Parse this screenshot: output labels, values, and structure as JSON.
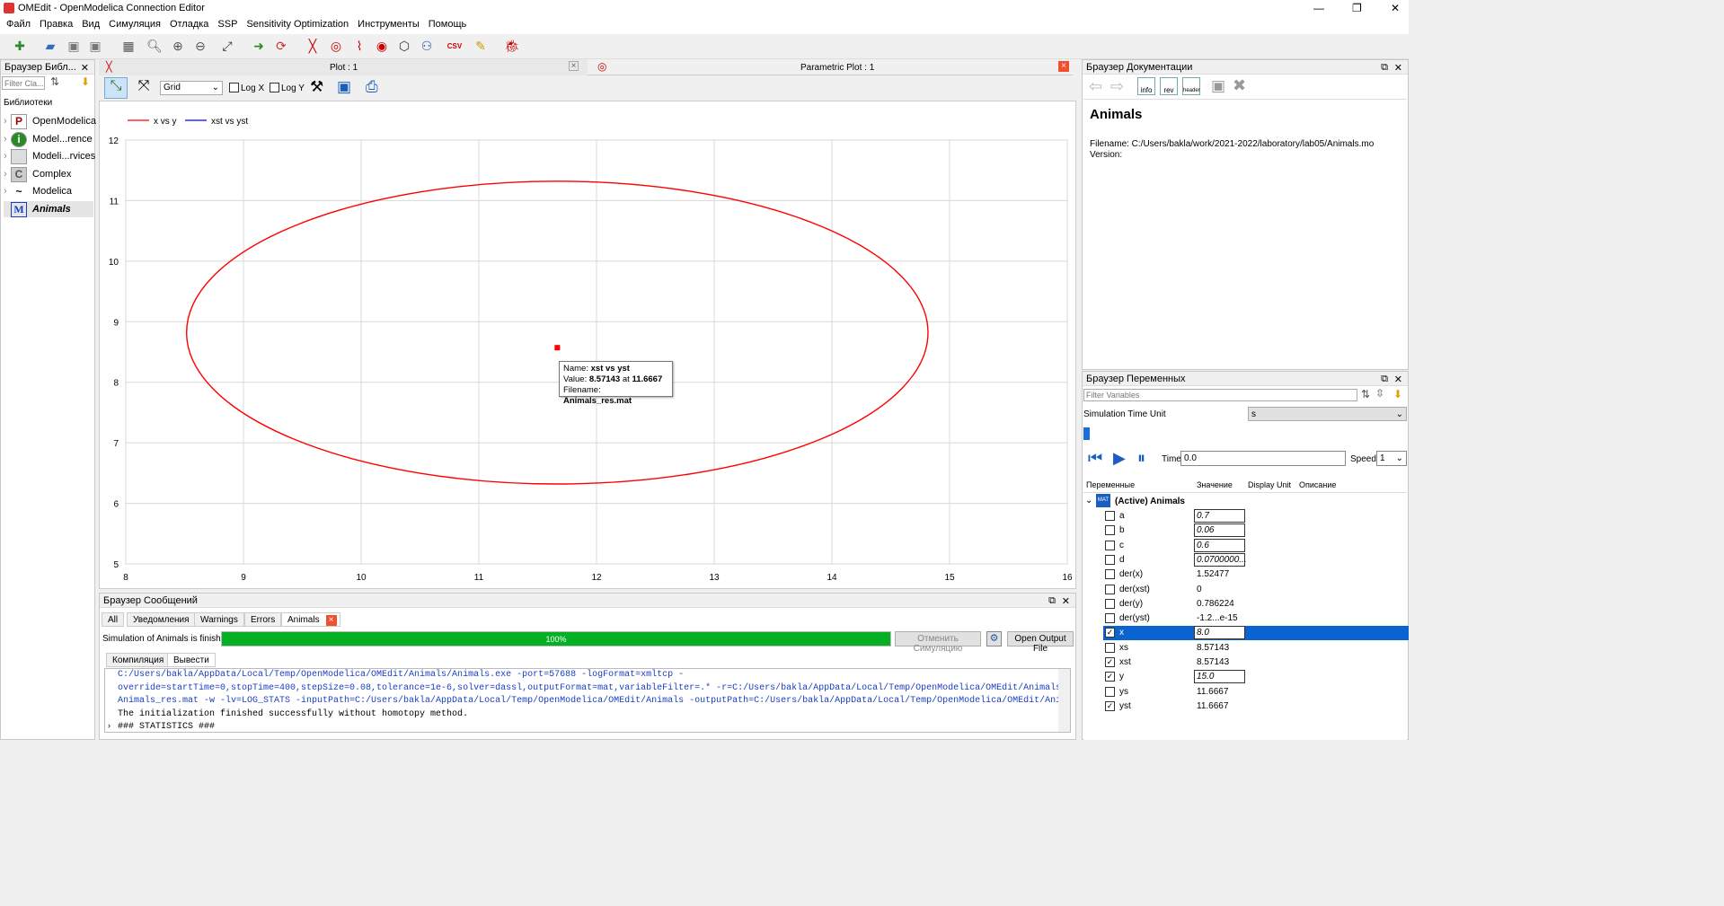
{
  "app": {
    "title": "OMEdit - OpenModelica Connection Editor"
  },
  "menu": [
    "Файл",
    "Правка",
    "Вид",
    "Симуляция",
    "Отладка",
    "SSP",
    "Sensitivity Optimization",
    "Инструменты",
    "Помощь"
  ],
  "library_browser": {
    "title": "Браузер Библ...",
    "filter_placeholder": "Filter Cla...",
    "header": "Библиотеки",
    "items": [
      {
        "label": "OpenModelica",
        "icon": "P"
      },
      {
        "label": "Model...rence",
        "icon": "i"
      },
      {
        "label": "Modeli...rvices",
        "icon": ""
      },
      {
        "label": "Complex",
        "icon": "C"
      },
      {
        "label": "Modelica",
        "icon": "~"
      },
      {
        "label": "Animals",
        "icon": "M"
      }
    ]
  },
  "plot_tabs": {
    "plot": "Plot : 1",
    "parametric": "Parametric Plot : 1"
  },
  "plot_toolbar": {
    "grid_select": "Grid",
    "logx": "Log X",
    "logy": "Log Y"
  },
  "chart_data": {
    "type": "line",
    "legend": [
      {
        "name": "x vs y",
        "color": "#ff0000"
      },
      {
        "name": "xst vs yst",
        "color": "#0000ff"
      }
    ],
    "xlim": [
      8,
      16
    ],
    "ylim": [
      5,
      12
    ],
    "xticks": [
      "8",
      "9",
      "10",
      "11",
      "12",
      "13",
      "14",
      "15",
      "16"
    ],
    "yticks": [
      "5",
      "6",
      "7",
      "8",
      "9",
      "10",
      "11",
      "12"
    ],
    "series": [
      {
        "name": "x vs y",
        "shape": "ellipse",
        "center": [
          11.6667,
          8.82
        ],
        "rx": 3.15,
        "ry": 2.5
      },
      {
        "name": "xst vs yst",
        "point": [
          11.6667,
          8.57143
        ]
      }
    ],
    "grid": true,
    "tooltip": {
      "name_label": "Name:",
      "name": "xst vs yst",
      "value_label": "Value:",
      "value": "8.57143",
      "at": "at",
      "at_value": "11.6667",
      "file_label": "Filename:",
      "file": "Animals_res.mat"
    }
  },
  "messages": {
    "title": "Браузер Сообщений",
    "tabs": [
      "All",
      "Уведомления",
      "Warnings",
      "Errors",
      "Animals"
    ],
    "status": "Simulation of Animals is finished.",
    "progress": "100%",
    "cancel": "Отменить Симуляцию",
    "open_output": "Open Output File",
    "subtabs": [
      "Компиляция",
      "Вывести"
    ],
    "log": [
      "C:/Users/bakla/AppData/Local/Temp/OpenModelica/OMEdit/Animals/Animals.exe -port=57688 -logFormat=xmltcp -",
      "override=startTime=0,stopTime=400,stepSize=0.08,tolerance=1e-6,solver=dassl,outputFormat=mat,variableFilter=.* -r=C:/Users/bakla/AppData/Local/Temp/OpenModelica/OMEdit/Animals/",
      "Animals_res.mat -w -lv=LOG_STATS -inputPath=C:/Users/bakla/AppData/Local/Temp/OpenModelica/OMEdit/Animals -outputPath=C:/Users/bakla/AppData/Local/Temp/OpenModelica/OMEdit/Animals",
      "The initialization finished successfully without homotopy method.",
      "### STATISTICS ###"
    ]
  },
  "doc_browser": {
    "title": "Браузер Документации",
    "buttons": [
      "info",
      "rev",
      "header"
    ],
    "heading": "Animals",
    "filename": "Filename: C:/Users/bakla/work/2021-2022/laboratory/lab05/Animals.mo",
    "version": "Version:"
  },
  "var_browser": {
    "title": "Браузер Переменных",
    "filter_placeholder": "Filter Variables",
    "time_unit_label": "Simulation Time Unit",
    "time_unit": "s",
    "time_label": "Time:",
    "time_value": "0.0",
    "speed_label": "Speed:",
    "speed": "1",
    "columns": [
      "Переменные",
      "Значение",
      "Display Unit",
      "Описание"
    ],
    "root": "(Active) Animals",
    "rows": [
      {
        "name": "a",
        "value": "0.7",
        "checked": false,
        "editable": true
      },
      {
        "name": "b",
        "value": "0.06",
        "checked": false,
        "editable": true
      },
      {
        "name": "c",
        "value": "0.6",
        "checked": false,
        "editable": true
      },
      {
        "name": "d",
        "value": "0.0700000...",
        "checked": false,
        "editable": true
      },
      {
        "name": "der(x)",
        "value": "1.52477",
        "checked": false,
        "editable": false
      },
      {
        "name": "der(xst)",
        "value": "0",
        "checked": false,
        "editable": false
      },
      {
        "name": "der(y)",
        "value": "0.786224",
        "checked": false,
        "editable": false
      },
      {
        "name": "der(yst)",
        "value": "-1.2...e-15",
        "checked": false,
        "editable": false
      },
      {
        "name": "x",
        "value": "8.0",
        "checked": true,
        "editable": true,
        "selected": true
      },
      {
        "name": "xs",
        "value": "8.57143",
        "checked": false,
        "editable": false
      },
      {
        "name": "xst",
        "value": "8.57143",
        "checked": true,
        "editable": false
      },
      {
        "name": "y",
        "value": "15.0",
        "checked": true,
        "editable": true
      },
      {
        "name": "ys",
        "value": "11.6667",
        "checked": false,
        "editable": false
      },
      {
        "name": "yst",
        "value": "11.6667",
        "checked": true,
        "editable": false
      }
    ]
  }
}
